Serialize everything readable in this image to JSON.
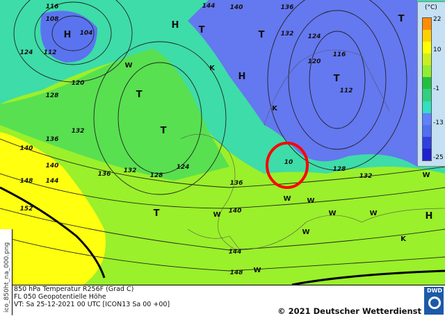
{
  "map": {
    "contour_labels": [
      "116",
      "108",
      "104",
      "124",
      "112",
      "120",
      "128",
      "136",
      "132",
      "140",
      "140",
      "144",
      "148",
      "152",
      "136",
      "132",
      "128",
      "124",
      "136",
      "140",
      "144",
      "148",
      "144",
      "140",
      "136",
      "132",
      "124",
      "120",
      "116",
      "112",
      "128",
      "132",
      "10"
    ],
    "pressure_letters": [
      "H",
      "T",
      "T",
      "H",
      "T",
      "T",
      "T",
      "T",
      "T",
      "K",
      "K",
      "K",
      "H",
      "W",
      "W",
      "W",
      "W",
      "W",
      "W",
      "W",
      "W",
      "W",
      "H"
    ],
    "highlight_color": "#ff0000"
  },
  "legend": {
    "unit": "(°C)",
    "ticks": [
      "22",
      "10",
      "-1",
      "-13",
      "-25"
    ],
    "colors": [
      "#ff8c00",
      "#ffd000",
      "#ffff00",
      "#c8f020",
      "#90ee30",
      "#20c040",
      "#30d080",
      "#30e0c0",
      "#6080ff",
      "#5070f0",
      "#3040e0",
      "#2020d0"
    ]
  },
  "side_label": "ico_850ht_na_000.png",
  "info": {
    "line1": "850 hPa Temperatur R256F (Grad C)",
    "line2": "FL 050 Geopotentielle Höhe",
    "line3": "VT: Sa 25-12-2021 00 UTC [ICON13 Sa 00 +00]",
    "copyright": "© 2021 Deutscher Wetterdienst",
    "logo": "DWD"
  }
}
